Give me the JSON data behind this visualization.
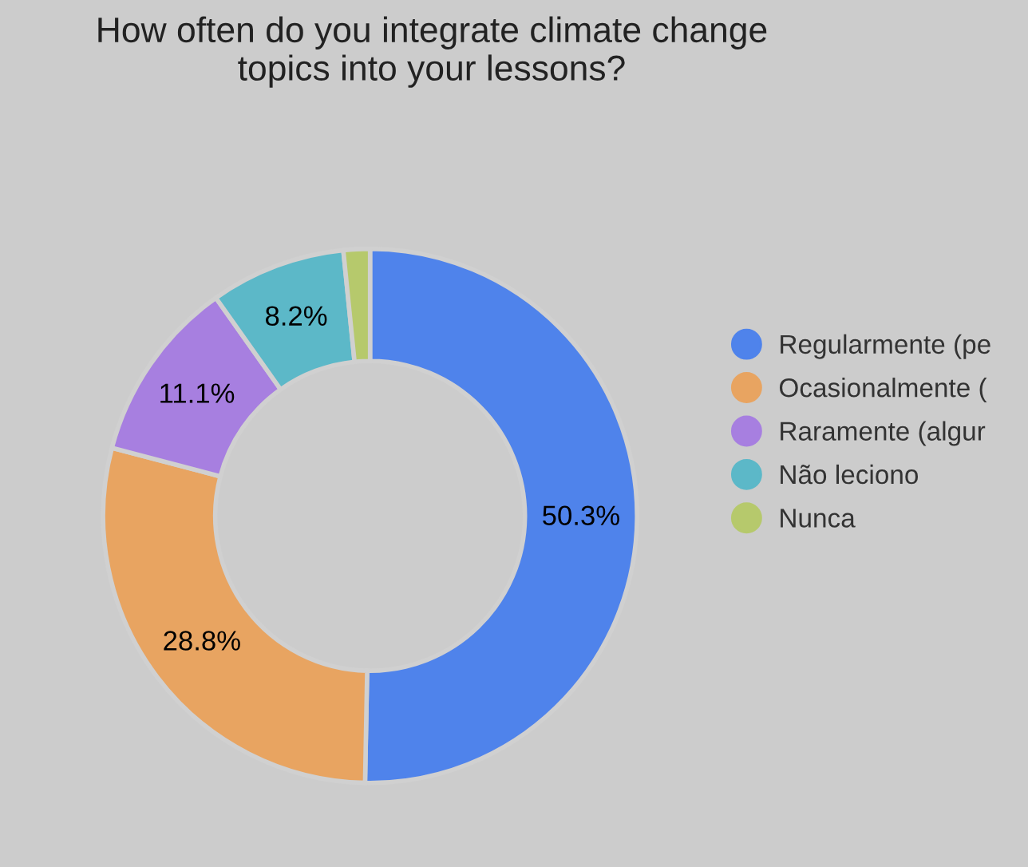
{
  "chart_data": {
    "type": "donut",
    "title": "How often do you integrate climate change\ntopics into your lessons?",
    "categories": [
      "Regularmente (pe",
      "Ocasionalmente (",
      "Raramente (algur",
      "Não leciono",
      "Nunca"
    ],
    "values": [
      50.3,
      28.8,
      11.1,
      8.2,
      1.6
    ],
    "colors": [
      "#4f83eb",
      "#e8a461",
      "#a77fe0",
      "#5cb8c8",
      "#b6c96c"
    ],
    "value_labels": [
      "50.3%",
      "28.8%",
      "11.1%",
      "8.2%",
      null
    ],
    "legend": "right"
  }
}
